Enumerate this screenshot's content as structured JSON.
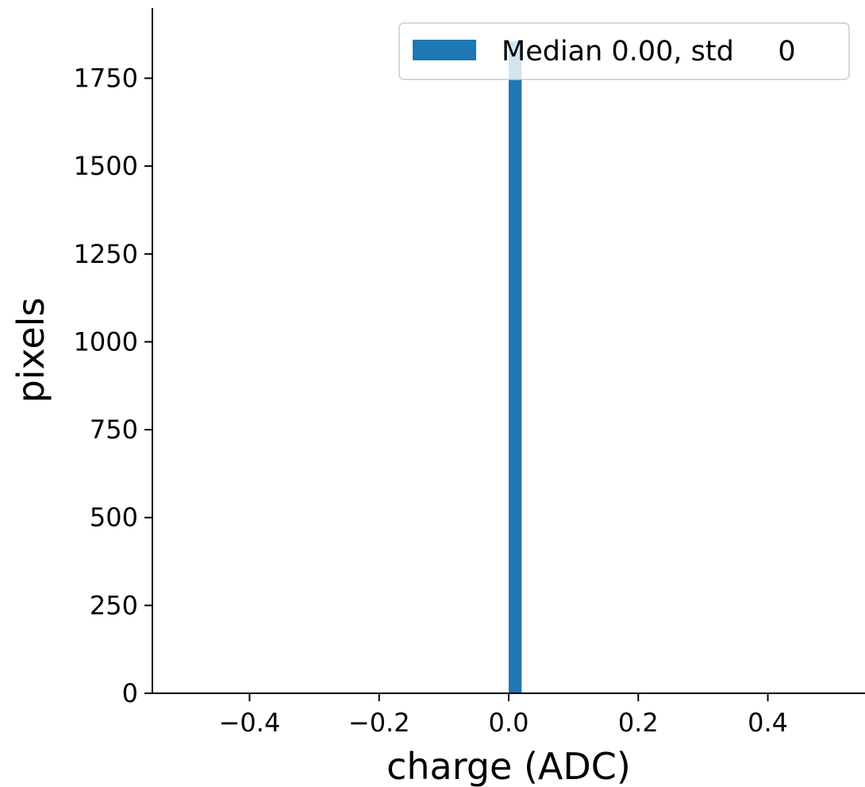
{
  "chart_data": {
    "type": "bar",
    "title": "",
    "xlabel": "charge (ADC)",
    "ylabel": "pixels",
    "xlim": [
      -0.55,
      0.55
    ],
    "ylim": [
      0,
      1950
    ],
    "x_ticks": [
      {
        "value": -0.4,
        "label": "−0.4"
      },
      {
        "value": -0.2,
        "label": "−0.2"
      },
      {
        "value": 0.0,
        "label": "0.0"
      },
      {
        "value": 0.2,
        "label": "0.2"
      },
      {
        "value": 0.4,
        "label": "0.4"
      }
    ],
    "y_ticks": [
      {
        "value": 0,
        "label": "0"
      },
      {
        "value": 250,
        "label": "250"
      },
      {
        "value": 500,
        "label": "500"
      },
      {
        "value": 750,
        "label": "750"
      },
      {
        "value": 1000,
        "label": "1000"
      },
      {
        "value": 1250,
        "label": "1250"
      },
      {
        "value": 1500,
        "label": "1500"
      },
      {
        "value": 1750,
        "label": "1750"
      }
    ],
    "series": [
      {
        "name": "Median 0.00, std     0",
        "color": "#1f77b4",
        "bins": [
          {
            "x0": 0.0,
            "x1": 0.02,
            "count": 1855
          }
        ]
      }
    ],
    "legend": {
      "position": "top-right",
      "label": "Median 0.00, std     0"
    },
    "grid": false
  }
}
